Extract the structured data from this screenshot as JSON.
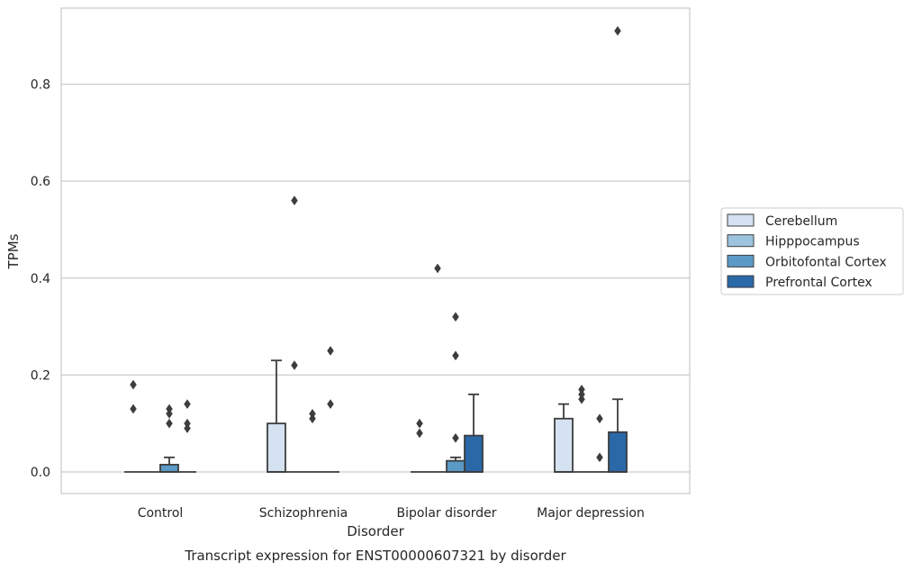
{
  "chart_data": {
    "type": "box",
    "caption": "Transcript expression for ENST00000607321 by disorder",
    "xlabel": "Disorder",
    "ylabel": "TPMs",
    "ylim": [
      -0.045,
      0.955
    ],
    "yticks": [
      0.0,
      0.2,
      0.4,
      0.6,
      0.8
    ],
    "ytick_labels": [
      "0.0",
      "0.2",
      "0.4",
      "0.6",
      "0.8"
    ],
    "grid": "horizontal",
    "legend_position": "right",
    "categories": [
      "Control",
      "Schizophrenia",
      "Bipolar disorder",
      "Major depression"
    ],
    "series": [
      {
        "name": "Cerebellum",
        "color": "#d4e2f1",
        "boxes": [
          {
            "q1": 0,
            "median": 0,
            "q3": 0,
            "whisker_low": 0,
            "whisker_high": 0,
            "outliers": [
              0.18,
              0.13
            ]
          },
          {
            "q1": 0,
            "median": 0,
            "q3": 0.1,
            "whisker_low": 0,
            "whisker_high": 0.23,
            "outliers": []
          },
          {
            "q1": 0,
            "median": 0,
            "q3": 0,
            "whisker_low": 0,
            "whisker_high": 0,
            "outliers": [
              0.1,
              0.08
            ]
          },
          {
            "q1": 0,
            "median": 0,
            "q3": 0.11,
            "whisker_low": 0,
            "whisker_high": 0.14,
            "outliers": []
          }
        ]
      },
      {
        "name": "Hipppocampus",
        "color": "#9dc4de",
        "boxes": [
          {
            "q1": 0,
            "median": 0,
            "q3": 0,
            "whisker_low": 0,
            "whisker_high": 0,
            "outliers": []
          },
          {
            "q1": 0,
            "median": 0,
            "q3": 0,
            "whisker_low": 0,
            "whisker_high": 0,
            "outliers": [
              0.22,
              0.56
            ]
          },
          {
            "q1": 0,
            "median": 0,
            "q3": 0,
            "whisker_low": 0,
            "whisker_high": 0,
            "outliers": [
              0.42
            ]
          },
          {
            "q1": 0,
            "median": 0,
            "q3": 0,
            "whisker_low": 0,
            "whisker_high": 0,
            "outliers": [
              0.17,
              0.16,
              0.15
            ]
          }
        ]
      },
      {
        "name": "Orbitofontal Cortex",
        "color": "#5b9ac6",
        "boxes": [
          {
            "q1": 0,
            "median": 0,
            "q3": 0.015,
            "whisker_low": 0,
            "whisker_high": 0.03,
            "outliers": [
              0.13,
              0.12,
              0.1
            ]
          },
          {
            "q1": 0,
            "median": 0,
            "q3": 0,
            "whisker_low": 0,
            "whisker_high": 0,
            "outliers": [
              0.12,
              0.11
            ]
          },
          {
            "q1": 0,
            "median": 0,
            "q3": 0.023,
            "whisker_low": 0,
            "whisker_high": 0.03,
            "outliers": [
              0.32,
              0.24,
              0.07
            ]
          },
          {
            "q1": 0,
            "median": 0,
            "q3": 0,
            "whisker_low": 0,
            "whisker_high": 0,
            "outliers": [
              0.11,
              0.03
            ]
          }
        ]
      },
      {
        "name": "Prefrontal Cortex",
        "color": "#2a68a8",
        "boxes": [
          {
            "q1": 0,
            "median": 0,
            "q3": 0,
            "whisker_low": 0,
            "whisker_high": 0,
            "outliers": [
              0.14,
              0.1,
              0.09
            ]
          },
          {
            "q1": 0,
            "median": 0,
            "q3": 0,
            "whisker_low": 0,
            "whisker_high": 0,
            "outliers": [
              0.25,
              0.14
            ]
          },
          {
            "q1": 0,
            "median": 0,
            "q3": 0.075,
            "whisker_low": 0,
            "whisker_high": 0.16,
            "outliers": []
          },
          {
            "q1": 0,
            "median": 0,
            "q3": 0.082,
            "whisker_low": 0,
            "whisker_high": 0.15,
            "outliers": [
              0.91
            ]
          }
        ]
      }
    ]
  }
}
